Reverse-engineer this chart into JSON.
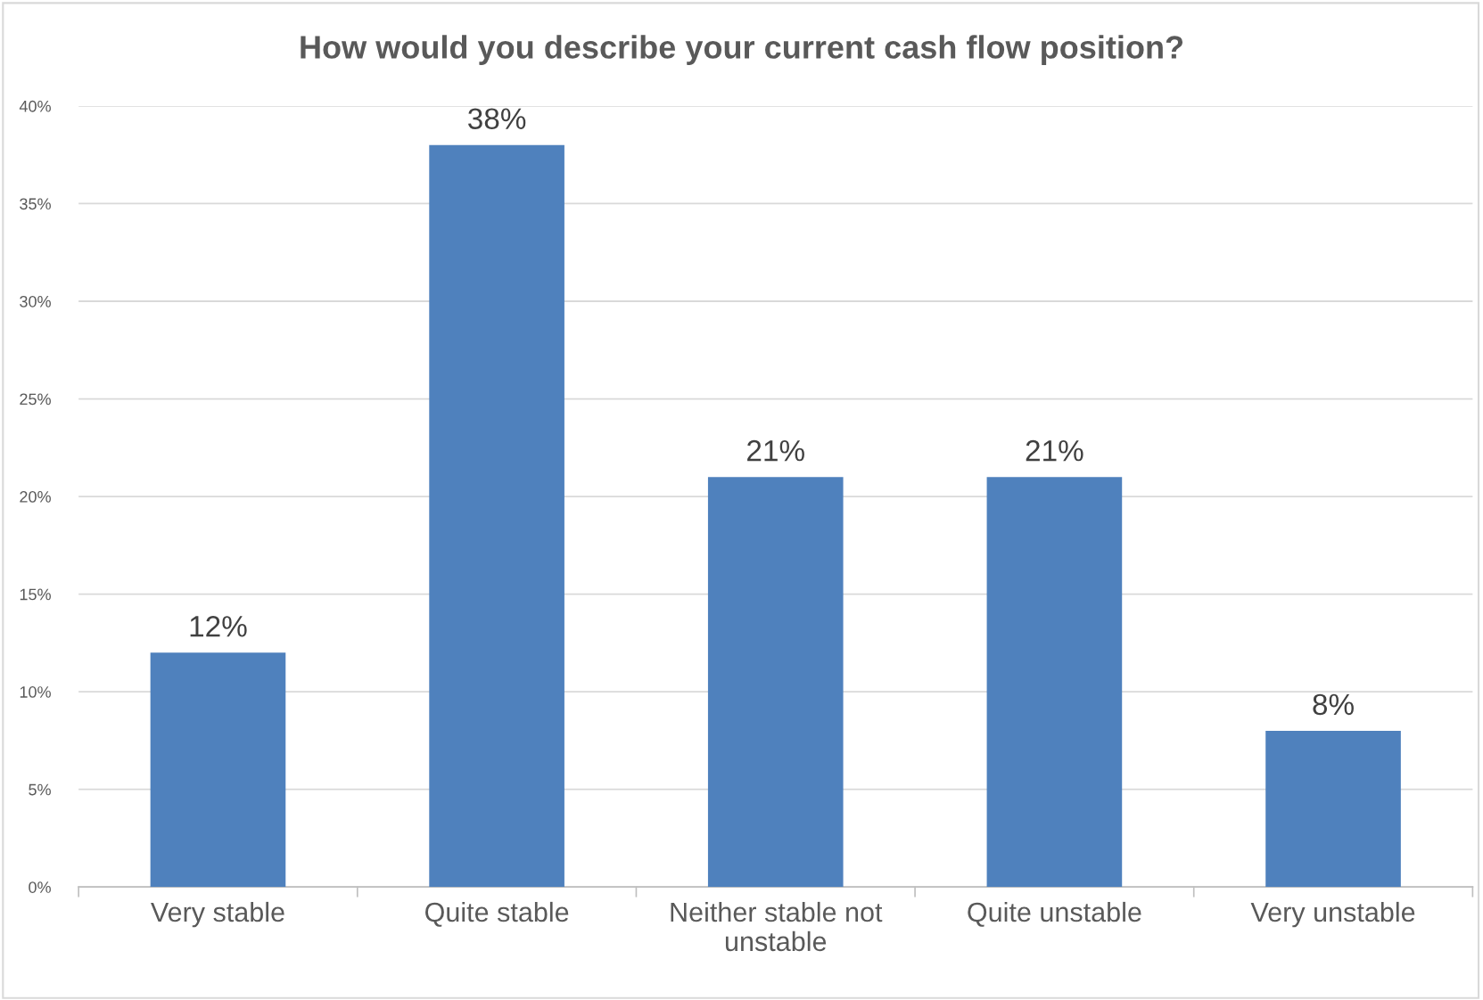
{
  "chart_data": {
    "type": "bar",
    "title": "How would you describe your current cash flow position?",
    "categories": [
      "Very stable",
      "Quite stable",
      "Neither stable not unstable",
      "Quite unstable",
      "Very unstable"
    ],
    "values": [
      12,
      38,
      21,
      21,
      8
    ],
    "value_labels": [
      "12%",
      "38%",
      "21%",
      "21%",
      "8%"
    ],
    "color": "#4f81bd",
    "ylim": [
      0,
      40
    ],
    "yticks": [
      {
        "value": 0,
        "label": "0%"
      },
      {
        "value": 5,
        "label": "5%"
      },
      {
        "value": 10,
        "label": "10%"
      },
      {
        "value": 15,
        "label": "15%"
      },
      {
        "value": 20,
        "label": "20%"
      },
      {
        "value": 25,
        "label": "25%"
      },
      {
        "value": 30,
        "label": "30%"
      },
      {
        "value": 35,
        "label": "35%"
      },
      {
        "value": 40,
        "label": "40%"
      }
    ],
    "grid": "y",
    "legend": false
  }
}
